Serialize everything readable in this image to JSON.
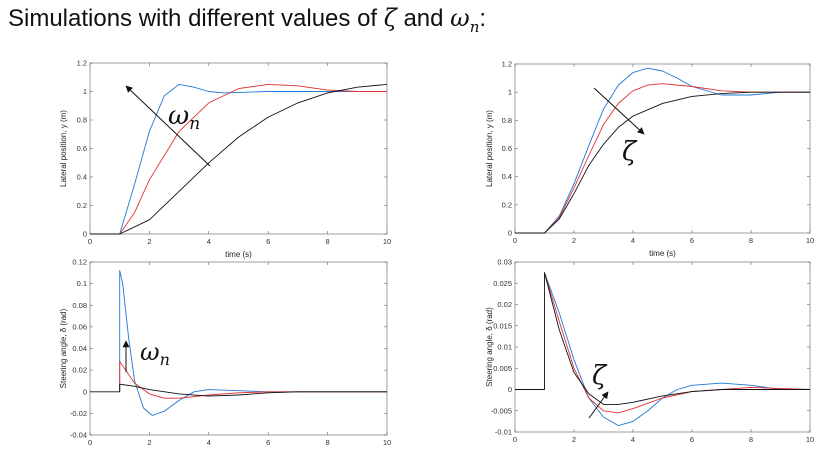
{
  "page": {
    "title_prefix": "Simulations with different values of",
    "zeta_symbol": "ζ",
    "and_word": "and",
    "omega_symbol": "ω",
    "omega_sub": "n",
    "colon": ":"
  },
  "colors": {
    "series_1": "#1f77d4",
    "series_2": "#e03030",
    "series_3": "#111111",
    "frame": "#888888"
  },
  "chart_data": [
    {
      "id": "lat_wn",
      "type": "line",
      "xlabel": "time (s)",
      "ylabel": "Lateral position, y (m)",
      "xlim": [
        0,
        10
      ],
      "ylim": [
        0,
        1.2
      ],
      "xticks": [
        0,
        2,
        4,
        6,
        8,
        10
      ],
      "yticks": [
        0,
        0.2,
        0.4,
        0.6,
        0.8,
        1,
        1.2
      ],
      "tick_labels_x": [
        "0",
        "2",
        "4",
        "6",
        "8",
        "10"
      ],
      "tick_labels_y": [
        "0",
        "0.2",
        "0.4",
        "0.6",
        "0.8",
        "1",
        "1.2"
      ],
      "annotation": {
        "symbol": "ω",
        "sub": "n"
      },
      "series": [
        {
          "color": "#1f77d4",
          "points": [
            [
              0,
              0
            ],
            [
              1,
              0
            ],
            [
              1.5,
              0.35
            ],
            [
              2,
              0.72
            ],
            [
              2.5,
              0.97
            ],
            [
              3,
              1.05
            ],
            [
              3.5,
              1.03
            ],
            [
              4,
              1.0
            ],
            [
              4.5,
              0.99
            ],
            [
              6,
              1.0
            ],
            [
              10,
              1.0
            ]
          ]
        },
        {
          "color": "#e03030",
          "points": [
            [
              0,
              0
            ],
            [
              1,
              0
            ],
            [
              1.5,
              0.15
            ],
            [
              2,
              0.38
            ],
            [
              3,
              0.72
            ],
            [
              4,
              0.92
            ],
            [
              5,
              1.02
            ],
            [
              6,
              1.05
            ],
            [
              7,
              1.04
            ],
            [
              8,
              1.01
            ],
            [
              9,
              1.0
            ],
            [
              10,
              1.0
            ]
          ]
        },
        {
          "color": "#111111",
          "points": [
            [
              0,
              0
            ],
            [
              1,
              0
            ],
            [
              2,
              0.1
            ],
            [
              3,
              0.3
            ],
            [
              4,
              0.5
            ],
            [
              5,
              0.68
            ],
            [
              6,
              0.82
            ],
            [
              7,
              0.92
            ],
            [
              8,
              0.99
            ],
            [
              9,
              1.03
            ],
            [
              10,
              1.05
            ]
          ]
        }
      ]
    },
    {
      "id": "lat_zeta",
      "type": "line",
      "xlabel": "time (s)",
      "ylabel": "Lateral position, y (m)",
      "xlim": [
        0,
        10
      ],
      "ylim": [
        0,
        1.2
      ],
      "xticks": [
        0,
        2,
        4,
        6,
        8,
        10
      ],
      "yticks": [
        0,
        0.2,
        0.4,
        0.6,
        0.8,
        1,
        1.2
      ],
      "tick_labels_x": [
        "0",
        "2",
        "4",
        "6",
        "8",
        "10"
      ],
      "tick_labels_y": [
        "0",
        "0.2",
        "0.4",
        "0.6",
        "0.8",
        "1",
        "1.2"
      ],
      "annotation": {
        "symbol": "ζ",
        "sub": ""
      },
      "series": [
        {
          "color": "#1f77d4",
          "points": [
            [
              0,
              0
            ],
            [
              1,
              0
            ],
            [
              1.5,
              0.12
            ],
            [
              2,
              0.35
            ],
            [
              2.5,
              0.62
            ],
            [
              3,
              0.88
            ],
            [
              3.5,
              1.05
            ],
            [
              4,
              1.14
            ],
            [
              4.5,
              1.17
            ],
            [
              5,
              1.15
            ],
            [
              5.5,
              1.1
            ],
            [
              6,
              1.04
            ],
            [
              7,
              0.98
            ],
            [
              8,
              0.98
            ],
            [
              9,
              1.0
            ],
            [
              10,
              1.0
            ]
          ]
        },
        {
          "color": "#e03030",
          "points": [
            [
              0,
              0
            ],
            [
              1,
              0
            ],
            [
              1.5,
              0.11
            ],
            [
              2,
              0.32
            ],
            [
              2.5,
              0.55
            ],
            [
              3,
              0.77
            ],
            [
              3.5,
              0.92
            ],
            [
              4,
              1.01
            ],
            [
              4.5,
              1.05
            ],
            [
              5,
              1.06
            ],
            [
              6,
              1.04
            ],
            [
              7,
              1.01
            ],
            [
              8,
              1.0
            ],
            [
              10,
              1.0
            ]
          ]
        },
        {
          "color": "#111111",
          "points": [
            [
              0,
              0
            ],
            [
              1,
              0
            ],
            [
              1.5,
              0.1
            ],
            [
              2,
              0.28
            ],
            [
              2.5,
              0.48
            ],
            [
              3,
              0.63
            ],
            [
              3.5,
              0.75
            ],
            [
              4,
              0.83
            ],
            [
              5,
              0.92
            ],
            [
              6,
              0.97
            ],
            [
              7,
              0.99
            ],
            [
              8,
              1.0
            ],
            [
              10,
              1.0
            ]
          ]
        }
      ]
    },
    {
      "id": "steer_wn",
      "type": "line",
      "xlabel": "",
      "ylabel": "Steering angle, δ (rad)",
      "xlim": [
        0,
        10
      ],
      "ylim": [
        -0.04,
        0.12
      ],
      "xticks": [
        0,
        2,
        4,
        6,
        8,
        10
      ],
      "yticks": [
        -0.04,
        -0.02,
        0,
        0.02,
        0.04,
        0.06,
        0.08,
        0.1,
        0.12
      ],
      "tick_labels_x": [
        "0",
        "2",
        "4",
        "6",
        "8",
        "10"
      ],
      "tick_labels_y": [
        "-0.04",
        "-0.02",
        "0",
        "0.02",
        "0.04",
        "0.06",
        "0.08",
        "0.1",
        "0.12"
      ],
      "annotation": {
        "symbol": "ω",
        "sub": "n"
      },
      "series": [
        {
          "color": "#1f77d4",
          "points": [
            [
              1,
              0
            ],
            [
              1,
              0.112
            ],
            [
              1.1,
              0.1
            ],
            [
              1.3,
              0.05
            ],
            [
              1.5,
              0.01
            ],
            [
              1.8,
              -0.015
            ],
            [
              2.1,
              -0.022
            ],
            [
              2.5,
              -0.018
            ],
            [
              3,
              -0.008
            ],
            [
              3.5,
              0.0
            ],
            [
              4,
              0.002
            ],
            [
              5,
              0.001
            ],
            [
              6,
              0.0
            ],
            [
              10,
              0.0
            ]
          ]
        },
        {
          "color": "#e03030",
          "points": [
            [
              1,
              0
            ],
            [
              1,
              0.028
            ],
            [
              1.2,
              0.02
            ],
            [
              1.5,
              0.008
            ],
            [
              2,
              -0.002
            ],
            [
              2.5,
              -0.006
            ],
            [
              3,
              -0.006
            ],
            [
              4,
              -0.003
            ],
            [
              5,
              -0.001
            ],
            [
              6,
              0.0
            ],
            [
              10,
              0.0
            ]
          ]
        },
        {
          "color": "#111111",
          "points": [
            [
              0,
              0
            ],
            [
              1,
              0
            ],
            [
              1,
              0.007
            ],
            [
              1.5,
              0.005
            ],
            [
              2,
              0.002
            ],
            [
              3,
              -0.002
            ],
            [
              4,
              -0.004
            ],
            [
              5,
              -0.003
            ],
            [
              6,
              -0.001
            ],
            [
              7,
              0.0
            ],
            [
              10,
              0.0
            ]
          ]
        }
      ]
    },
    {
      "id": "steer_zeta",
      "type": "line",
      "xlabel": "",
      "ylabel": "Steering angle, δ (rad)",
      "xlim": [
        0,
        10
      ],
      "ylim": [
        -0.01,
        0.03
      ],
      "xticks": [
        0,
        2,
        4,
        6,
        8,
        10
      ],
      "yticks": [
        -0.01,
        -0.005,
        0,
        0.005,
        0.01,
        0.015,
        0.02,
        0.025,
        0.03
      ],
      "tick_labels_x": [
        "0",
        "2",
        "4",
        "6",
        "8",
        "10"
      ],
      "tick_labels_y": [
        "-0.01",
        "-0.005",
        "0",
        "0.005",
        "0.01",
        "0.015",
        "0.02",
        "0.025",
        "0.03"
      ],
      "annotation": {
        "symbol": "ζ",
        "sub": ""
      },
      "series": [
        {
          "color": "#1f77d4",
          "points": [
            [
              1,
              0.0275
            ],
            [
              1.5,
              0.018
            ],
            [
              2,
              0.007
            ],
            [
              2.5,
              -0.002
            ],
            [
              3,
              -0.0065
            ],
            [
              3.5,
              -0.0085
            ],
            [
              4,
              -0.0075
            ],
            [
              4.5,
              -0.005
            ],
            [
              5,
              -0.002
            ],
            [
              5.5,
              0.0
            ],
            [
              6,
              0.001
            ],
            [
              7,
              0.0015
            ],
            [
              8,
              0.001
            ],
            [
              9,
              0.0
            ],
            [
              10,
              0.0
            ]
          ]
        },
        {
          "color": "#e03030",
          "points": [
            [
              1,
              0.0275
            ],
            [
              1.5,
              0.016
            ],
            [
              2,
              0.005
            ],
            [
              2.5,
              -0.002
            ],
            [
              3,
              -0.005
            ],
            [
              3.5,
              -0.0055
            ],
            [
              4,
              -0.0045
            ],
            [
              5,
              -0.002
            ],
            [
              6,
              -0.0005
            ],
            [
              7,
              0.0
            ],
            [
              8,
              0.0005
            ],
            [
              10,
              0.0
            ]
          ]
        },
        {
          "color": "#111111",
          "points": [
            [
              0,
              0
            ],
            [
              1,
              0
            ],
            [
              1,
              0.0275
            ],
            [
              1.5,
              0.014
            ],
            [
              2,
              0.004
            ],
            [
              2.5,
              -0.001
            ],
            [
              3,
              -0.0035
            ],
            [
              3.5,
              -0.0035
            ],
            [
              4,
              -0.003
            ],
            [
              5,
              -0.0015
            ],
            [
              6,
              -0.0005
            ],
            [
              7,
              0.0
            ],
            [
              10,
              0.0
            ]
          ]
        }
      ]
    }
  ]
}
